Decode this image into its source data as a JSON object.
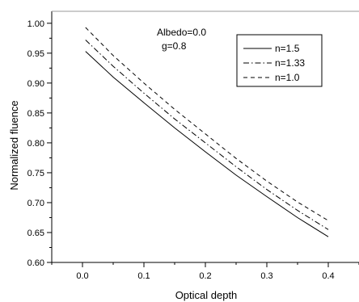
{
  "chart_data": {
    "type": "line",
    "title": "",
    "xlabel": "Optical depth",
    "ylabel": "Normalized fluence",
    "xlim": [
      -0.05,
      0.45
    ],
    "ylim": [
      0.6,
      1.02
    ],
    "x_ticks": [
      0.0,
      0.1,
      0.2,
      0.3,
      0.4
    ],
    "x_tick_labels": [
      "0.0",
      "0.1",
      "0.2",
      "0.3",
      "0.4"
    ],
    "y_ticks": [
      0.6,
      0.65,
      0.7,
      0.75,
      0.8,
      0.85,
      0.9,
      0.95,
      1.0
    ],
    "y_tick_labels": [
      "0.60",
      "0.65",
      "0.70",
      "0.75",
      "0.80",
      "0.85",
      "0.90",
      "0.95",
      "1.00"
    ],
    "annotations": [
      "Albedo=0.0",
      "g=0.8"
    ],
    "legend_position": "top-right",
    "grid": false,
    "series": [
      {
        "name": "n=1.5",
        "style": "solid",
        "x": [
          0.005,
          0.05,
          0.1,
          0.15,
          0.2,
          0.25,
          0.3,
          0.35,
          0.4
        ],
        "y": [
          0.953,
          0.91,
          0.867,
          0.825,
          0.785,
          0.746,
          0.71,
          0.675,
          0.643
        ]
      },
      {
        "name": "n=1.33",
        "style": "dash-dot",
        "x": [
          0.005,
          0.05,
          0.1,
          0.15,
          0.2,
          0.25,
          0.3,
          0.35,
          0.4
        ],
        "y": [
          0.972,
          0.928,
          0.883,
          0.84,
          0.8,
          0.76,
          0.722,
          0.687,
          0.655
        ]
      },
      {
        "name": "n=1.0",
        "style": "dashed",
        "x": [
          0.005,
          0.05,
          0.1,
          0.15,
          0.2,
          0.25,
          0.3,
          0.35,
          0.4
        ],
        "y": [
          0.993,
          0.946,
          0.9,
          0.856,
          0.815,
          0.774,
          0.736,
          0.701,
          0.67
        ]
      }
    ]
  }
}
